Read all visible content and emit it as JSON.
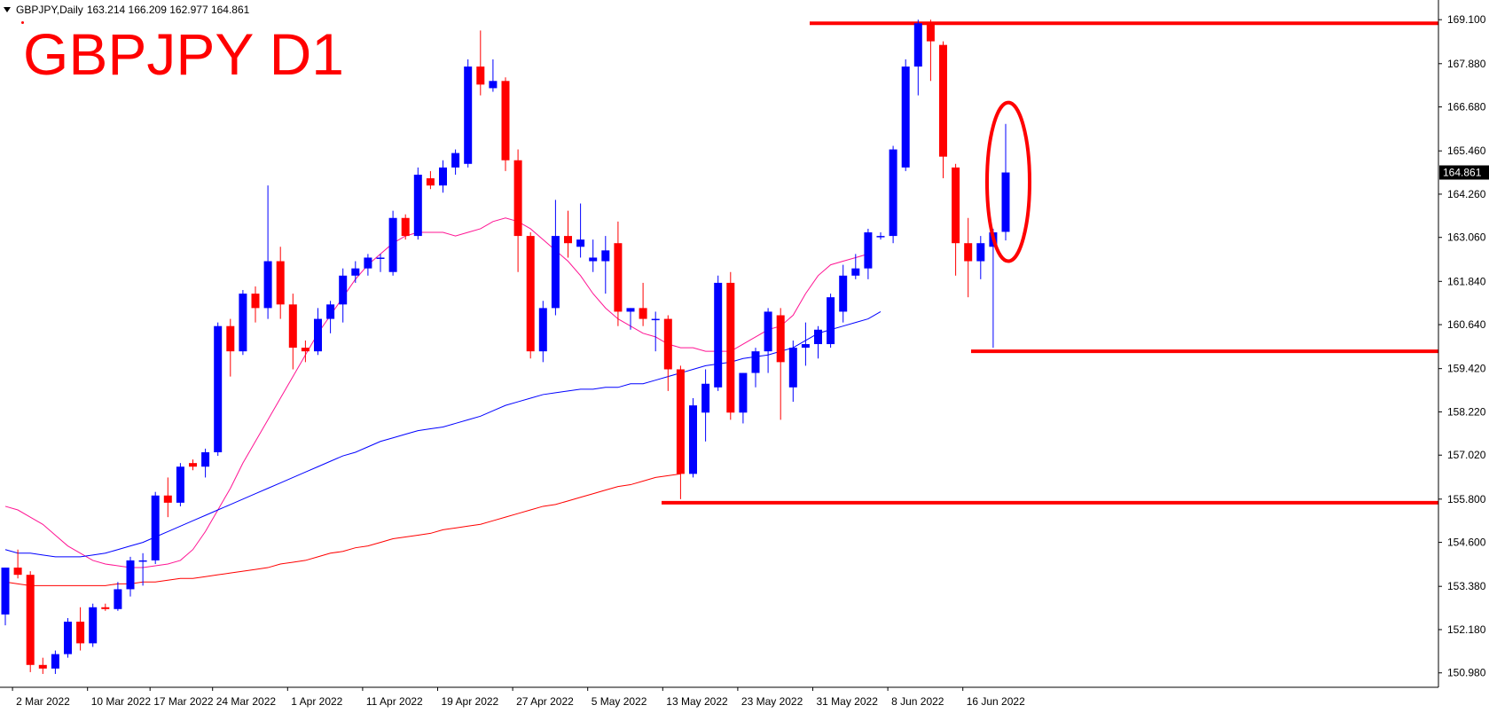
{
  "header": {
    "symbol": "GBPJPY,Daily",
    "ohlc": "163.214 166.209 162.977 164.861"
  },
  "overlay_title": "GBPJPY D1",
  "chart_data": {
    "type": "candlestick",
    "symbol": "GBPJPY",
    "timeframe": "Daily",
    "current_price": 164.861,
    "current_price_label": "164.861",
    "ylim": [
      150.58,
      169.4
    ],
    "y_ticks": [
      "169.100",
      "167.880",
      "166.680",
      "165.460",
      "164.260",
      "163.060",
      "161.840",
      "160.640",
      "159.420",
      "158.220",
      "157.020",
      "155.800",
      "154.600",
      "153.380",
      "152.180",
      "150.980"
    ],
    "x_ticks": [
      {
        "label": "2 Mar 2022",
        "index": 1
      },
      {
        "label": "10 Mar 2022",
        "index": 7
      },
      {
        "label": "17 Mar 2022",
        "index": 12
      },
      {
        "label": "24 Mar 2022",
        "index": 17
      },
      {
        "label": "1 Apr 2022",
        "index": 23
      },
      {
        "label": "11 Apr 2022",
        "index": 29
      },
      {
        "label": "19 Apr 2022",
        "index": 35
      },
      {
        "label": "27 Apr 2022",
        "index": 41
      },
      {
        "label": "5 May 2022",
        "index": 47
      },
      {
        "label": "13 May 2022",
        "index": 53
      },
      {
        "label": "23 May 2022",
        "index": 59
      },
      {
        "label": "31 May 2022",
        "index": 65
      },
      {
        "label": "8 Jun 2022",
        "index": 71
      },
      {
        "label": "16 Jun 2022",
        "index": 77
      }
    ],
    "candles": [
      {
        "o": 152.6,
        "h": 153.9,
        "l": 152.3,
        "c": 153.9
      },
      {
        "o": 153.9,
        "h": 154.4,
        "l": 153.6,
        "c": 153.7
      },
      {
        "o": 153.7,
        "h": 153.8,
        "l": 151.0,
        "c": 151.2
      },
      {
        "o": 151.2,
        "h": 151.4,
        "l": 150.95,
        "c": 151.1
      },
      {
        "o": 151.1,
        "h": 151.6,
        "l": 150.95,
        "c": 151.5
      },
      {
        "o": 151.5,
        "h": 152.5,
        "l": 151.4,
        "c": 152.4
      },
      {
        "o": 152.4,
        "h": 152.8,
        "l": 151.6,
        "c": 151.8
      },
      {
        "o": 151.8,
        "h": 152.9,
        "l": 151.7,
        "c": 152.8
      },
      {
        "o": 152.8,
        "h": 152.9,
        "l": 152.7,
        "c": 152.75
      },
      {
        "o": 152.75,
        "h": 153.5,
        "l": 152.7,
        "c": 153.3
      },
      {
        "o": 153.3,
        "h": 154.2,
        "l": 153.1,
        "c": 154.1
      },
      {
        "o": 154.1,
        "h": 154.3,
        "l": 153.4,
        "c": 154.1
      },
      {
        "o": 154.1,
        "h": 156.0,
        "l": 154.0,
        "c": 155.9
      },
      {
        "o": 155.9,
        "h": 156.4,
        "l": 155.3,
        "c": 155.7
      },
      {
        "o": 155.7,
        "h": 156.8,
        "l": 155.6,
        "c": 156.7
      },
      {
        "o": 156.8,
        "h": 156.9,
        "l": 156.6,
        "c": 156.7
      },
      {
        "o": 156.7,
        "h": 157.2,
        "l": 156.4,
        "c": 157.1
      },
      {
        "o": 157.1,
        "h": 160.7,
        "l": 157.0,
        "c": 160.6
      },
      {
        "o": 160.6,
        "h": 160.8,
        "l": 159.2,
        "c": 159.9
      },
      {
        "o": 159.9,
        "h": 161.6,
        "l": 159.8,
        "c": 161.5
      },
      {
        "o": 161.5,
        "h": 161.7,
        "l": 160.7,
        "c": 161.1
      },
      {
        "o": 161.1,
        "h": 164.5,
        "l": 160.8,
        "c": 162.4
      },
      {
        "o": 162.4,
        "h": 162.8,
        "l": 160.8,
        "c": 161.2
      },
      {
        "o": 161.2,
        "h": 161.5,
        "l": 159.4,
        "c": 160.0
      },
      {
        "o": 160.0,
        "h": 160.2,
        "l": 159.6,
        "c": 159.9
      },
      {
        "o": 159.9,
        "h": 161.1,
        "l": 159.8,
        "c": 160.8
      },
      {
        "o": 160.8,
        "h": 161.3,
        "l": 160.4,
        "c": 161.2
      },
      {
        "o": 161.2,
        "h": 162.2,
        "l": 160.7,
        "c": 162.0
      },
      {
        "o": 162.0,
        "h": 162.4,
        "l": 161.8,
        "c": 162.2
      },
      {
        "o": 162.2,
        "h": 162.6,
        "l": 162.0,
        "c": 162.5
      },
      {
        "o": 162.5,
        "h": 162.6,
        "l": 162.1,
        "c": 162.5
      },
      {
        "o": 162.1,
        "h": 163.8,
        "l": 162.0,
        "c": 163.6
      },
      {
        "o": 163.6,
        "h": 163.7,
        "l": 163.0,
        "c": 163.1
      },
      {
        "o": 163.1,
        "h": 165.0,
        "l": 163.0,
        "c": 164.8
      },
      {
        "o": 164.7,
        "h": 164.9,
        "l": 164.4,
        "c": 164.5
      },
      {
        "o": 164.5,
        "h": 165.2,
        "l": 164.3,
        "c": 165.0
      },
      {
        "o": 165.0,
        "h": 165.5,
        "l": 164.8,
        "c": 165.4
      },
      {
        "o": 165.1,
        "h": 168.0,
        "l": 165.0,
        "c": 167.8
      },
      {
        "o": 167.8,
        "h": 168.8,
        "l": 167.0,
        "c": 167.3
      },
      {
        "o": 167.2,
        "h": 168.0,
        "l": 167.1,
        "c": 167.4
      },
      {
        "o": 167.4,
        "h": 167.5,
        "l": 164.9,
        "c": 165.2
      },
      {
        "o": 165.2,
        "h": 165.5,
        "l": 162.1,
        "c": 163.1
      },
      {
        "o": 163.1,
        "h": 163.2,
        "l": 159.7,
        "c": 159.9
      },
      {
        "o": 159.9,
        "h": 161.3,
        "l": 159.6,
        "c": 161.1
      },
      {
        "o": 161.1,
        "h": 164.1,
        "l": 160.9,
        "c": 163.1
      },
      {
        "o": 163.1,
        "h": 163.8,
        "l": 162.5,
        "c": 162.9
      },
      {
        "o": 162.8,
        "h": 164.0,
        "l": 162.5,
        "c": 163.0
      },
      {
        "o": 162.4,
        "h": 163.0,
        "l": 162.1,
        "c": 162.5
      },
      {
        "o": 162.4,
        "h": 163.1,
        "l": 161.5,
        "c": 162.7
      },
      {
        "o": 162.9,
        "h": 163.5,
        "l": 160.6,
        "c": 161.0
      },
      {
        "o": 161.0,
        "h": 161.1,
        "l": 160.5,
        "c": 161.1
      },
      {
        "o": 161.1,
        "h": 161.8,
        "l": 160.6,
        "c": 160.8
      },
      {
        "o": 160.8,
        "h": 161.0,
        "l": 159.9,
        "c": 160.8
      },
      {
        "o": 160.8,
        "h": 160.9,
        "l": 158.8,
        "c": 159.4
      },
      {
        "o": 159.4,
        "h": 159.5,
        "l": 155.8,
        "c": 156.5
      },
      {
        "o": 156.5,
        "h": 158.6,
        "l": 156.4,
        "c": 158.4
      },
      {
        "o": 158.2,
        "h": 159.4,
        "l": 157.4,
        "c": 159.0
      },
      {
        "o": 158.9,
        "h": 162.0,
        "l": 158.8,
        "c": 161.8
      },
      {
        "o": 161.8,
        "h": 162.1,
        "l": 158.0,
        "c": 158.2
      },
      {
        "o": 158.2,
        "h": 159.3,
        "l": 157.9,
        "c": 159.3
      },
      {
        "o": 159.3,
        "h": 160.0,
        "l": 158.9,
        "c": 159.9
      },
      {
        "o": 159.9,
        "h": 161.1,
        "l": 159.3,
        "c": 161.0
      },
      {
        "o": 160.9,
        "h": 161.1,
        "l": 158.0,
        "c": 159.6
      },
      {
        "o": 158.9,
        "h": 160.2,
        "l": 158.5,
        "c": 160.0
      },
      {
        "o": 160.0,
        "h": 160.7,
        "l": 159.5,
        "c": 160.1
      },
      {
        "o": 160.1,
        "h": 160.6,
        "l": 159.7,
        "c": 160.5
      },
      {
        "o": 160.1,
        "h": 161.5,
        "l": 160.0,
        "c": 161.4
      },
      {
        "o": 161.0,
        "h": 162.3,
        "l": 160.7,
        "c": 162.0
      },
      {
        "o": 162.0,
        "h": 162.6,
        "l": 161.9,
        "c": 162.2
      },
      {
        "o": 162.2,
        "h": 163.3,
        "l": 161.9,
        "c": 163.2
      },
      {
        "o": 163.1,
        "h": 163.2,
        "l": 163.0,
        "c": 163.1
      },
      {
        "o": 163.1,
        "h": 165.6,
        "l": 162.9,
        "c": 165.5
      },
      {
        "o": 165.0,
        "h": 168.0,
        "l": 164.9,
        "c": 167.8
      },
      {
        "o": 167.8,
        "h": 169.1,
        "l": 167.0,
        "c": 169.0
      },
      {
        "o": 169.0,
        "h": 169.1,
        "l": 167.4,
        "c": 168.5
      },
      {
        "o": 168.4,
        "h": 168.5,
        "l": 164.7,
        "c": 165.3
      },
      {
        "o": 165.0,
        "h": 165.1,
        "l": 162.0,
        "c": 162.9
      },
      {
        "o": 162.9,
        "h": 163.6,
        "l": 161.4,
        "c": 162.4
      },
      {
        "o": 162.4,
        "h": 163.1,
        "l": 161.9,
        "c": 162.9
      },
      {
        "o": 162.8,
        "h": 163.3,
        "l": 160.0,
        "c": 163.2
      },
      {
        "o": 163.214,
        "h": 166.209,
        "l": 162.977,
        "c": 164.861
      }
    ],
    "moving_averages": [
      {
        "color": "#ff1493",
        "start": 0,
        "values": [
          155.6,
          155.5,
          155.3,
          155.1,
          154.8,
          154.5,
          154.3,
          154.1,
          154.0,
          153.95,
          153.9,
          153.9,
          153.95,
          154.0,
          154.1,
          154.4,
          154.9,
          155.5,
          156.1,
          156.8,
          157.4,
          158.0,
          158.6,
          159.2,
          159.8,
          160.4,
          160.9,
          161.4,
          161.9,
          162.3,
          162.6,
          162.9,
          163.1,
          163.2,
          163.2,
          163.2,
          163.1,
          163.2,
          163.3,
          163.5,
          163.6,
          163.5,
          163.3,
          163.0,
          162.7,
          162.4,
          162.0,
          161.5,
          161.1,
          160.8,
          160.6,
          160.4,
          160.3,
          160.1,
          160.0,
          160.0,
          159.9,
          159.9,
          159.9,
          160.1,
          160.3,
          160.5,
          160.6,
          160.9,
          161.5,
          162.0,
          162.3,
          162.4,
          162.5,
          162.6
        ]
      },
      {
        "color": "#0000ff",
        "start": 0,
        "values": [
          154.4,
          154.3,
          154.3,
          154.25,
          154.2,
          154.2,
          154.2,
          154.25,
          154.3,
          154.4,
          154.5,
          154.6,
          154.75,
          154.9,
          155.05,
          155.2,
          155.35,
          155.5,
          155.65,
          155.8,
          155.95,
          156.1,
          156.25,
          156.4,
          156.55,
          156.7,
          156.85,
          157.0,
          157.1,
          157.25,
          157.4,
          157.5,
          157.6,
          157.7,
          157.75,
          157.8,
          157.9,
          158.0,
          158.1,
          158.25,
          158.4,
          158.5,
          158.6,
          158.7,
          158.75,
          158.8,
          158.85,
          158.85,
          158.9,
          158.9,
          159.0,
          159.0,
          159.1,
          159.2,
          159.3,
          159.4,
          159.5,
          159.55,
          159.6,
          159.7,
          159.75,
          159.8,
          159.9,
          160.0,
          160.2,
          160.4,
          160.5,
          160.6,
          160.7,
          160.8,
          161.0
        ]
      },
      {
        "color": "#ff0000",
        "start": 0,
        "values": [
          153.5,
          153.45,
          153.4,
          153.4,
          153.4,
          153.4,
          153.4,
          153.4,
          153.4,
          153.45,
          153.45,
          153.5,
          153.5,
          153.55,
          153.6,
          153.6,
          153.65,
          153.7,
          153.75,
          153.8,
          153.85,
          153.9,
          154.0,
          154.05,
          154.1,
          154.2,
          154.3,
          154.35,
          154.45,
          154.5,
          154.6,
          154.7,
          154.75,
          154.8,
          154.85,
          154.95,
          155.0,
          155.05,
          155.1,
          155.2,
          155.3,
          155.4,
          155.5,
          155.6,
          155.65,
          155.75,
          155.85,
          155.95,
          156.05,
          156.15,
          156.2,
          156.3,
          156.4,
          156.45,
          156.5
        ]
      }
    ],
    "horizontal_levels": [
      169.0,
      159.9,
      155.7
    ],
    "highlight_ellipse": {
      "index": 80,
      "price_top": 166.8,
      "price_bottom": 162.4
    },
    "colors": {
      "bull": "#0000ff",
      "bear": "#ff0000",
      "annotation": "#ff0000"
    }
  }
}
